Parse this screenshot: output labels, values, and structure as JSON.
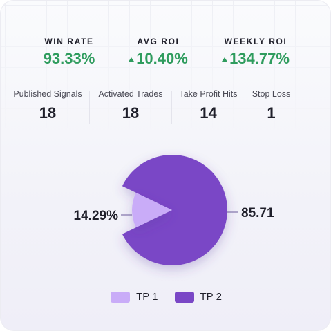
{
  "kpis": {
    "win_rate": {
      "label": "WIN RATE",
      "value": "93.33%"
    },
    "avg_roi": {
      "label": "AVG ROI",
      "value": "10.40%",
      "trend_icon": "triangle-up-icon"
    },
    "weekly_roi": {
      "label": "WEEKLY ROI",
      "value": "134.77%",
      "trend_icon": "triangle-up-icon"
    }
  },
  "stats": [
    {
      "label": "Published Signals",
      "value": "18"
    },
    {
      "label": "Activated Trades",
      "value": "18"
    },
    {
      "label": "Take Profit Hits",
      "value": "14"
    },
    {
      "label": "Stop Loss",
      "value": "1"
    }
  ],
  "colors": {
    "positive": "#2f9c5e",
    "tp1": "#c9acf8",
    "tp2": "#7a47c6",
    "text_dark": "#1f1f2a"
  },
  "chart_data": {
    "type": "pie",
    "slices": [
      {
        "name": "TP 1",
        "value": 14.29,
        "label": "14.29%",
        "color": "#c9acf8"
      },
      {
        "name": "TP 2",
        "value": 85.71,
        "label": "85.71",
        "color": "#7a47c6"
      }
    ],
    "legend": [
      "TP 1",
      "TP 2"
    ],
    "legend_position": "bottom"
  }
}
